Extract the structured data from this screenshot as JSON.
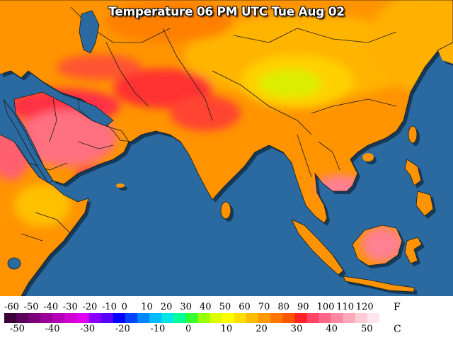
{
  "title": "Temperature 06 PM UTC Tue Aug 02",
  "legend": {
    "fahrenheit_unit": "F",
    "celsius_unit": "C",
    "fahrenheit_ticks": [
      "-60",
      "-50",
      "-40",
      "-30",
      "-20",
      "-10",
      "0",
      "10",
      "20",
      "30",
      "40",
      "50",
      "60",
      "70",
      "80",
      "90",
      "100",
      "110",
      "120"
    ],
    "celsius_ticks": [
      "-50",
      "-40",
      "-30",
      "-20",
      "-10",
      "0",
      "10",
      "20",
      "30",
      "40",
      "50"
    ],
    "color_scale": [
      "#3a003a",
      "#5a005a",
      "#7a007a",
      "#9a0099",
      "#b400b4",
      "#d000d0",
      "#e000f0",
      "#8800ff",
      "#5a00ff",
      "#0000ff",
      "#0044ff",
      "#0088ff",
      "#00bbff",
      "#00e6e6",
      "#00ff99",
      "#33ff33",
      "#99ff00",
      "#ddff00",
      "#ffff00",
      "#ffdd00",
      "#ffbb00",
      "#ff9900",
      "#ff7700",
      "#ff5500",
      "#ff2222",
      "#ff4466",
      "#ff6688",
      "#ff88a0",
      "#ffaabb",
      "#ffccd6",
      "#ffe6ec",
      "#ffffff"
    ]
  },
  "map": {
    "region": "South Asia, Middle East and East Africa",
    "colors": {
      "ocean": "#2a6aa0",
      "land_warm": "#ff9400",
      "land_mild": "#ffbb00",
      "land_hot": "#ff3a3a",
      "land_veryhot": "#ff8090",
      "land_cool": "#ddee00"
    }
  }
}
